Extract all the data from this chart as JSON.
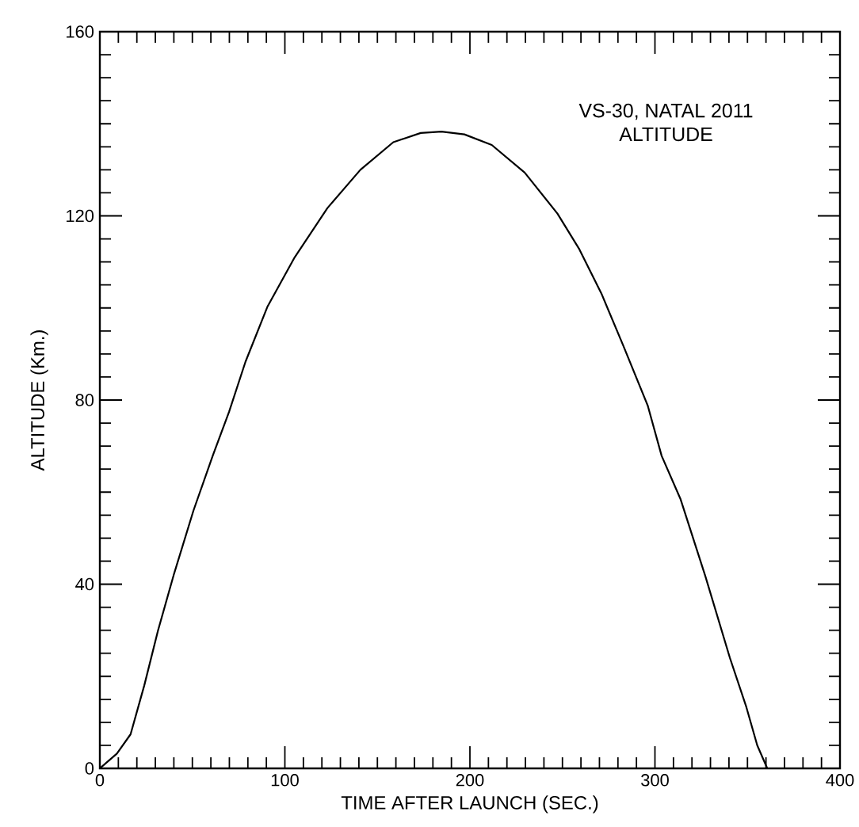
{
  "chart_data": {
    "type": "line",
    "title": "VS-30, NATAL 2011",
    "subtitle": "ALTITUDE",
    "xlabel": "TIME AFTER LAUNCH (SEC.)",
    "ylabel": "ALTITUDE (Km.)",
    "xlim": [
      0,
      400
    ],
    "ylim": [
      0,
      160
    ],
    "xticks": [
      0,
      100,
      200,
      300,
      400
    ],
    "yticks": [
      0,
      40,
      80,
      120,
      160
    ],
    "grid": false,
    "marker": "none",
    "line_style": "solid",
    "series": [
      {
        "color": "#000000",
        "x": [
          0,
          9.2,
          16.6,
          24,
          31.4,
          40.2,
          50.6,
          61,
          69.8,
          78.7,
          90.5,
          105.3,
          123,
          140.8,
          158.6,
          173.4,
          184.6,
          197,
          211.8,
          229.6,
          247.3,
          259.2,
          271,
          282.8,
          296.1,
          303.6,
          313.9,
          327.2,
          340.5,
          349.4,
          355.3,
          360.7
        ],
        "values": [
          0,
          3.2,
          7.4,
          18,
          29.9,
          42.4,
          56,
          67.9,
          77.4,
          88.3,
          100.2,
          111,
          121.7,
          130,
          136,
          138,
          138.3,
          137.7,
          135.4,
          129.4,
          120.5,
          112.7,
          103.2,
          91.9,
          78.8,
          67.9,
          58.4,
          41.8,
          24,
          13.3,
          5,
          0
        ]
      }
    ]
  }
}
